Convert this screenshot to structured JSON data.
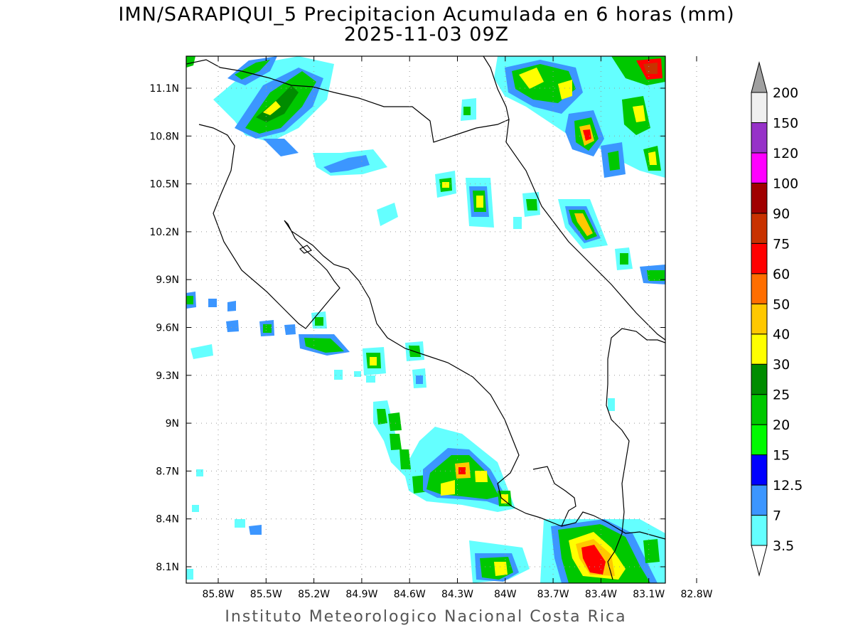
{
  "title": {
    "line1": "IMN/SARAPIQUI_5 Precipitacion Acumulada en 6 horas (mm)",
    "line2": "2025-11-03 09Z"
  },
  "footer": "Instituto Meteorologico Nacional Costa Rica",
  "map": {
    "lon_range": [
      -86.05,
      -82.66
    ],
    "lat_range": [
      7.98,
      11.27
    ],
    "lon_ticks": [
      "85.8W",
      "85.5W",
      "85.2W",
      "84.9W",
      "84.6W",
      "84.3W",
      "84W",
      "83.7W",
      "83.4W",
      "83.1W",
      "82.8W"
    ],
    "lat_ticks": [
      "11.1N",
      "10.8N",
      "10.5N",
      "10.2N",
      "9.9N",
      "9.6N",
      "9.3N",
      "9N",
      "8.7N",
      "8.4N",
      "8.1N"
    ]
  },
  "legend": {
    "unit": "mm",
    "levels": [
      "3.5",
      "7",
      "12.5",
      "15",
      "20",
      "25",
      "30",
      "40",
      "50",
      "60",
      "75",
      "90",
      "100",
      "120",
      "150",
      "200"
    ],
    "colors": [
      "#64ffff",
      "#3c96ff",
      "#0000ff",
      "#00fa00",
      "#00c800",
      "#008c00",
      "#ffff00",
      "#ffc800",
      "#ff6e00",
      "#ff0000",
      "#c83200",
      "#a00000",
      "#ff00ff",
      "#9632c8",
      "#f0f0f0",
      "#a0a0a0"
    ]
  }
}
